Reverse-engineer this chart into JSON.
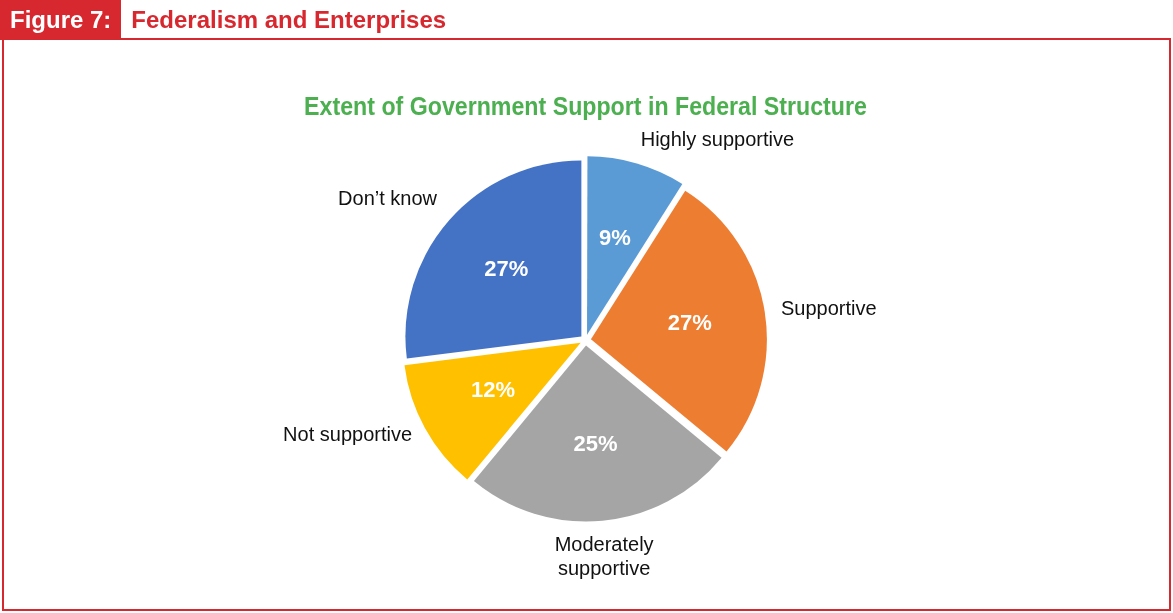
{
  "chart_data": {
    "type": "pie",
    "title": "Federalism and Enterprises",
    "subtitle": "Extent of Government Support in Federal Structure",
    "annotations": [
      "Figure 7:"
    ],
    "categories": [
      "Highly supportive",
      "Supportive",
      "Moderately supportive",
      "Not supportive",
      "Don’t know"
    ],
    "values": [
      9,
      27,
      25,
      12,
      27
    ],
    "colors": [
      "#5b9bd5",
      "#ed7d31",
      "#a5a5a5",
      "#ffc000",
      "#4472c4"
    ],
    "value_labels": [
      "9%",
      "27%",
      "25%",
      "12%",
      "27%"
    ],
    "legend": false
  }
}
